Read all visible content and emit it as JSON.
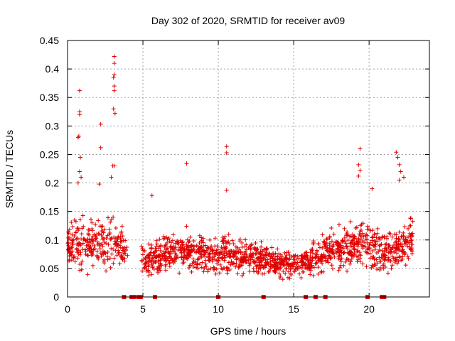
{
  "chart_data": {
    "type": "scatter",
    "title": "Day 302 of 2020, SRMTID for receiver av09",
    "xlabel": "GPS time / hours",
    "ylabel": "SRMTID / TECUs",
    "xlim": [
      0,
      24
    ],
    "ylim": [
      0,
      0.45
    ],
    "xticks": [
      0,
      5,
      10,
      15,
      20
    ],
    "yticks": [
      0,
      0.05,
      0.1,
      0.15,
      0.2,
      0.25,
      0.3,
      0.35,
      0.4,
      0.45
    ],
    "ytick_labels": [
      "0",
      "0.05",
      "0.1",
      "0.15",
      "0.2",
      "0.25",
      "0.3",
      "0.35",
      "0.4",
      "0.45"
    ],
    "grid": true,
    "marker": "plus",
    "color": "#e00000",
    "outliers": [
      {
        "x": 0.8,
        "y": 0.362
      },
      {
        "x": 0.8,
        "y": 0.325
      },
      {
        "x": 0.8,
        "y": 0.32
      },
      {
        "x": 0.7,
        "y": 0.28
      },
      {
        "x": 0.75,
        "y": 0.282
      },
      {
        "x": 0.85,
        "y": 0.245
      },
      {
        "x": 0.8,
        "y": 0.22
      },
      {
        "x": 0.9,
        "y": 0.21
      },
      {
        "x": 0.7,
        "y": 0.2
      },
      {
        "x": 2.2,
        "y": 0.303
      },
      {
        "x": 2.2,
        "y": 0.262
      },
      {
        "x": 2.1,
        "y": 0.198
      },
      {
        "x": 3.1,
        "y": 0.422
      },
      {
        "x": 3.1,
        "y": 0.41
      },
      {
        "x": 3.1,
        "y": 0.39
      },
      {
        "x": 3.05,
        "y": 0.385
      },
      {
        "x": 3.1,
        "y": 0.37
      },
      {
        "x": 3.1,
        "y": 0.362
      },
      {
        "x": 3.05,
        "y": 0.33
      },
      {
        "x": 3.15,
        "y": 0.322
      },
      {
        "x": 3.0,
        "y": 0.23
      },
      {
        "x": 3.1,
        "y": 0.23
      },
      {
        "x": 2.9,
        "y": 0.21
      },
      {
        "x": 5.6,
        "y": 0.178
      },
      {
        "x": 7.9,
        "y": 0.234
      },
      {
        "x": 10.55,
        "y": 0.264
      },
      {
        "x": 10.55,
        "y": 0.253
      },
      {
        "x": 10.55,
        "y": 0.187
      },
      {
        "x": 19.4,
        "y": 0.26
      },
      {
        "x": 19.3,
        "y": 0.232
      },
      {
        "x": 19.4,
        "y": 0.222
      },
      {
        "x": 19.3,
        "y": 0.212
      },
      {
        "x": 20.2,
        "y": 0.19
      },
      {
        "x": 21.8,
        "y": 0.254
      },
      {
        "x": 21.9,
        "y": 0.245
      },
      {
        "x": 22.0,
        "y": 0.232
      },
      {
        "x": 22.1,
        "y": 0.22
      },
      {
        "x": 22.0,
        "y": 0.205
      },
      {
        "x": 22.3,
        "y": 0.21
      }
    ],
    "envelope": {
      "x": [
        0,
        0.5,
        1.0,
        1.5,
        2.0,
        2.5,
        3.0,
        3.5,
        4.0,
        4.5,
        5.0,
        5.5,
        6.0,
        6.5,
        7.0,
        7.5,
        8.0,
        8.5,
        9.0,
        9.5,
        10.0,
        10.5,
        11.0,
        11.5,
        12.0,
        12.5,
        13.0,
        13.5,
        14.0,
        14.5,
        15.0,
        15.5,
        16.0,
        16.5,
        17.0,
        17.5,
        18.0,
        18.5,
        19.0,
        19.5,
        20.0,
        20.5,
        21.0,
        21.5,
        22.0,
        22.5,
        23.0
      ],
      "center": [
        0.085,
        0.09,
        0.095,
        0.09,
        0.095,
        0.1,
        0.1,
        0.085,
        0.075,
        null,
        0.065,
        0.065,
        0.07,
        0.075,
        0.078,
        0.08,
        0.078,
        0.075,
        0.075,
        0.072,
        0.075,
        0.075,
        0.07,
        0.068,
        0.068,
        0.066,
        0.065,
        0.063,
        0.06,
        0.06,
        0.058,
        0.06,
        0.065,
        0.07,
        0.075,
        0.08,
        0.085,
        0.09,
        0.09,
        0.095,
        0.09,
        0.085,
        0.08,
        0.08,
        0.09,
        0.1,
        0.1
      ],
      "spread": [
        0.04,
        0.045,
        0.05,
        0.045,
        0.05,
        0.05,
        0.05,
        0.04,
        0.035,
        null,
        0.025,
        0.028,
        0.032,
        0.035,
        0.036,
        0.036,
        0.035,
        0.034,
        0.033,
        0.032,
        0.034,
        0.034,
        0.032,
        0.031,
        0.03,
        0.03,
        0.03,
        0.029,
        0.028,
        0.028,
        0.027,
        0.028,
        0.03,
        0.032,
        0.034,
        0.035,
        0.036,
        0.038,
        0.038,
        0.04,
        0.038,
        0.035,
        0.034,
        0.034,
        0.036,
        0.04,
        0.04
      ]
    },
    "zero_markers_x": [
      3.75,
      4.25,
      4.4,
      4.7,
      4.85,
      5.8,
      10.0,
      13.0,
      15.8,
      16.45,
      17.1,
      19.9,
      20.85,
      21.0
    ]
  }
}
